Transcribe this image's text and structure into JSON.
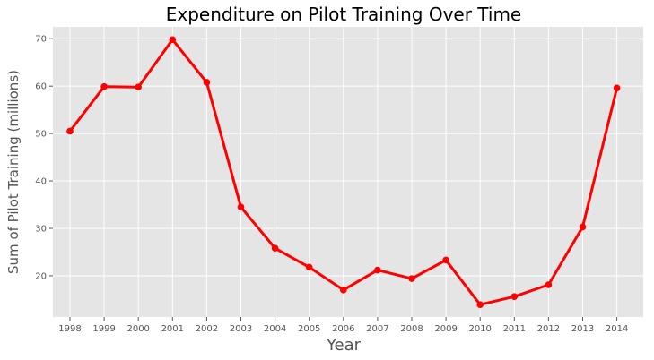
{
  "chart_data": {
    "type": "line",
    "title": "Expenditure on Pilot Training Over Time",
    "xlabel": "Year",
    "ylabel": "Sum of Pilot Training (millions)",
    "x": [
      "1998",
      "1999",
      "2000",
      "2001",
      "2002",
      "2003",
      "2004",
      "2005",
      "2006",
      "2007",
      "2008",
      "2009",
      "2010",
      "2011",
      "2012",
      "2013",
      "2014"
    ],
    "series": [
      {
        "values": [
          50.5,
          59.9,
          59.8,
          69.8,
          60.8,
          34.5,
          25.8,
          21.8,
          17.0,
          21.2,
          19.4,
          23.3,
          13.9,
          15.6,
          18.1,
          30.3,
          59.6
        ]
      }
    ],
    "yticks": [
      20,
      30,
      40,
      50,
      60,
      70
    ],
    "ylim": [
      11.3,
      72.5
    ],
    "grid": true,
    "line_color": "#ff0000",
    "plot_background": "#e5e5e5",
    "grid_color": "#ffffff"
  }
}
